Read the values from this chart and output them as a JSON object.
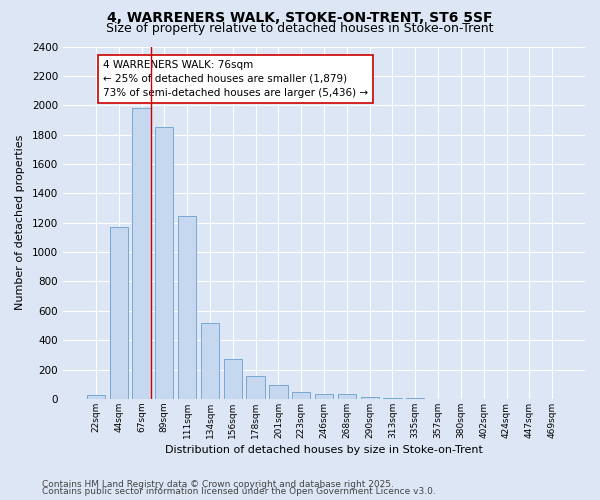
{
  "title1": "4, WARRENERS WALK, STOKE-ON-TRENT, ST6 5SF",
  "title2": "Size of property relative to detached houses in Stoke-on-Trent",
  "xlabel": "Distribution of detached houses by size in Stoke-on-Trent",
  "ylabel": "Number of detached properties",
  "categories": [
    "22sqm",
    "44sqm",
    "67sqm",
    "89sqm",
    "111sqm",
    "134sqm",
    "156sqm",
    "178sqm",
    "201sqm",
    "223sqm",
    "246sqm",
    "268sqm",
    "290sqm",
    "313sqm",
    "335sqm",
    "357sqm",
    "380sqm",
    "402sqm",
    "424sqm",
    "447sqm",
    "469sqm"
  ],
  "values": [
    25,
    1170,
    1980,
    1855,
    1245,
    515,
    275,
    155,
    95,
    50,
    35,
    35,
    10,
    5,
    3,
    2,
    2,
    2,
    2,
    2,
    2
  ],
  "bar_color": "#c5d8f0",
  "bar_edge_color": "#6aa0cc",
  "vline_color": "#cc0000",
  "annotation_text": "4 WARRENERS WALK: 76sqm\n← 25% of detached houses are smaller (1,879)\n73% of semi-detached houses are larger (5,436) →",
  "annotation_box_color": "#ffffff",
  "annotation_box_edge": "#cc0000",
  "ylim": [
    0,
    2400
  ],
  "yticks": [
    0,
    200,
    400,
    600,
    800,
    1000,
    1200,
    1400,
    1600,
    1800,
    2000,
    2200,
    2400
  ],
  "bg_color": "#dde6f5",
  "plot_bg_color": "#dde6f5",
  "footer1": "Contains HM Land Registry data © Crown copyright and database right 2025.",
  "footer2": "Contains public sector information licensed under the Open Government Licence v3.0.",
  "title1_fontsize": 10,
  "title2_fontsize": 9,
  "annotation_fontsize": 7.5,
  "footer_fontsize": 6.5
}
